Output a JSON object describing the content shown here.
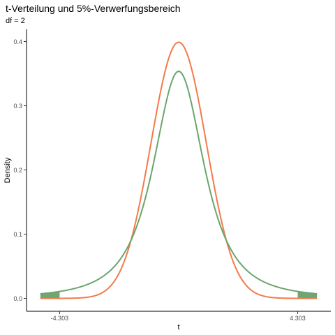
{
  "colors": {
    "normal": "#f47a4a",
    "t_curve": "#6aa56e",
    "rejection_fill": "#3f8a43",
    "axis": "#000000",
    "background": "#ffffff"
  },
  "chart_data": {
    "type": "area",
    "title": "t-Verteilung und 5%-Verwerfungsbereich",
    "subtitle": "df = 2",
    "xlabel": "t",
    "ylabel": "Density",
    "df": 2,
    "critical_value": 4.303,
    "xlim": [
      -5,
      5
    ],
    "ylim": [
      0,
      0.4
    ],
    "y_ticks": [
      0.0,
      0.1,
      0.2,
      0.3,
      0.4
    ],
    "y_tick_labels": [
      "0.0",
      "0.1",
      "0.2",
      "0.3",
      "0.4"
    ],
    "x_ticks": [
      -4.303,
      4.303
    ],
    "x_tick_labels": [
      "-4.303",
      "4.303"
    ],
    "grid": false,
    "legend": "none",
    "series": [
      {
        "distribution": "normal",
        "color": "#f47a4a",
        "x": [
          -5,
          -4,
          -3,
          -2.5,
          -2,
          -1.5,
          -1,
          -0.5,
          0,
          0.5,
          1,
          1.5,
          2,
          2.5,
          3,
          4,
          5
        ],
        "y": [
          0.0,
          0.0001,
          0.0044,
          0.0175,
          0.054,
          0.1295,
          0.242,
          0.3521,
          0.3989,
          0.3521,
          0.242,
          0.1295,
          0.054,
          0.0175,
          0.0044,
          0.0001,
          0.0
        ]
      },
      {
        "distribution": "t",
        "color": "#6aa56e",
        "x": [
          -5,
          -4.303,
          -4,
          -3,
          -2.5,
          -2,
          -1.5,
          -1,
          -0.5,
          0,
          0.5,
          1,
          1.5,
          2,
          2.5,
          3,
          4,
          4.303,
          5
        ],
        "y": [
          0.0071,
          0.0103,
          0.0124,
          0.0269,
          0.0417,
          0.068,
          0.1176,
          0.1925,
          0.2962,
          0.3536,
          0.2962,
          0.1925,
          0.1176,
          0.068,
          0.0417,
          0.0269,
          0.0124,
          0.0103,
          0.0071
        ]
      }
    ],
    "shaded_regions": [
      {
        "from": -5,
        "to": -4.303,
        "color": "#3f8a43"
      },
      {
        "from": 4.303,
        "to": 5,
        "color": "#3f8a43"
      }
    ]
  }
}
